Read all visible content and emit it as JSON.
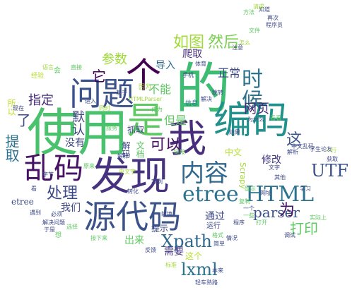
{
  "words": [
    {
      "id": "de",
      "text": "的",
      "color": "#3fbc73"
    },
    {
      "id": "shiyong",
      "text": "使用",
      "color": "#4ac16d"
    },
    {
      "id": "wo",
      "text": "我",
      "color": "#472d7b"
    },
    {
      "id": "faxian",
      "text": "发现",
      "color": "#46327e"
    },
    {
      "id": "bianma",
      "text": "编码",
      "color": "#21918c"
    },
    {
      "id": "wenti",
      "text": "问题",
      "color": "#3b528b"
    },
    {
      "id": "shi",
      "text": "是",
      "color": "#5ec962"
    },
    {
      "id": "ge",
      "text": "个",
      "color": "#440154"
    },
    {
      "id": "yuandaima",
      "text": "源代码",
      "color": "#3b528b"
    },
    {
      "id": "luanma",
      "text": "乱码",
      "color": "#471164"
    },
    {
      "id": "neirong",
      "text": "内容",
      "color": "#31688e"
    },
    {
      "id": "etree_html",
      "text": "etree HTML",
      "color": "#2c728e"
    },
    {
      "id": "shihou",
      "text": "时候",
      "color": "#2c728e"
    },
    {
      "id": "xpath",
      "text": "Xpath",
      "color": "#31688e"
    },
    {
      "id": "lxml",
      "text": "lxml",
      "color": "#2c728e"
    },
    {
      "id": "parser",
      "text": "parser",
      "color": "#3b528b"
    },
    {
      "id": "utf",
      "text": "UTF",
      "color": "#3b528b"
    },
    {
      "id": "keyi",
      "text": "可以",
      "color": "#471164"
    },
    {
      "id": "ruhetu",
      "text": "如图",
      "color": "#a0da39"
    },
    {
      "id": "ranhou",
      "text": "然后",
      "color": "#7ad151"
    },
    {
      "id": "zhengchang",
      "text": "正常",
      "color": "#3e4989"
    },
    {
      "id": "canshu",
      "text": "参数",
      "color": "#a0da39"
    },
    {
      "id": "chuli",
      "text": "处理",
      "color": "#3e4989"
    },
    {
      "id": "tiqu",
      "text": "提取",
      "color": "#2c728e"
    },
    {
      "id": "le",
      "text": "了",
      "color": "#3e4989"
    },
    {
      "id": "zhiding",
      "text": "指定",
      "color": "#472d7b"
    },
    {
      "id": "moren",
      "text": "默认",
      "color": "#414487"
    },
    {
      "id": "dayin",
      "text": "打印",
      "color": "#5ec962"
    },
    {
      "id": "wei",
      "text": "为",
      "color": "#471164"
    },
    {
      "id": "zhe",
      "text": "这",
      "color": "#3b528b"
    },
    {
      "id": "xiugai",
      "text": "修改",
      "color": "#443983"
    },
    {
      "id": "wangye",
      "text": "网页",
      "color": "#482878"
    },
    {
      "id": "buneng",
      "text": "不能",
      "color": "#5ec962"
    },
    {
      "id": "danshi",
      "text": "但是",
      "color": "#5ec962"
    },
    {
      "id": "tongguo",
      "text": "通过",
      "color": "#3e4989"
    },
    {
      "id": "women",
      "text": "我们",
      "color": "#3e4989"
    },
    {
      "id": "xuyao",
      "text": "需要",
      "color": "#443983"
    },
    {
      "id": "chulai",
      "text": "出来",
      "color": "#5ec962"
    },
    {
      "id": "zhege",
      "text": "这个",
      "color": "#b5de2b"
    },
    {
      "id": "pachu",
      "text": "爬取",
      "color": "#472d7b"
    },
    {
      "id": "daoru",
      "text": "导入",
      "color": "#31688e"
    },
    {
      "id": "ta",
      "text": "它",
      "color": "#440154"
    },
    {
      "id": "zhongwen",
      "text": "中文",
      "color": "#b5de2b"
    },
    {
      "id": "meiyou",
      "text": "没有",
      "color": "#3e4989"
    },
    {
      "id": "suoyi",
      "text": "所以",
      "color": "#bddf26"
    },
    {
      "id": "etree",
      "text": "etree",
      "color": "#3e4989"
    },
    {
      "id": "wendang",
      "text": "文档",
      "color": "#5ec962"
    },
    {
      "id": "jiema",
      "text": "解码",
      "color": "#3e4989"
    },
    {
      "id": "yunxing",
      "text": "运行",
      "color": "#3e4989"
    },
    {
      "id": "tishi",
      "text": "提示",
      "color": "#3e4989"
    },
    {
      "id": "zhuaqu",
      "text": "抓取",
      "color": "#3e4989"
    },
    {
      "id": "scrapy",
      "text": "Scrapy",
      "color": "#a0da39"
    },
    {
      "id": "shouji",
      "text": "手机",
      "color": "#3e4989"
    },
    {
      "id": "xinxi",
      "text": "信息",
      "color": "#2c728e"
    },
    {
      "id": "jiejue",
      "text": "解决",
      "color": "#3e4989"
    },
    {
      "id": "htmlparser",
      "text": "HTMLParser",
      "color": "#a0da39"
    },
    {
      "id": "zuowei",
      "text": "作为",
      "color": "#5ec962"
    },
    {
      "id": "tiyu",
      "text": "体育",
      "color": "#3e4989"
    },
    {
      "id": "xueshengyou",
      "text": "学生论友",
      "color": "#3e4989"
    },
    {
      "id": "jingyan",
      "text": "经验",
      "color": "#b5de2b"
    },
    {
      "id": "zhijie",
      "text": "直接",
      "color": "#5ec962"
    },
    {
      "id": "shijishang",
      "text": "实际上",
      "color": "#5ec962"
    },
    {
      "id": "tiaoshi",
      "text": "调试",
      "color": "#3e4989"
    },
    {
      "id": "chengxu",
      "text": "程序",
      "color": "#3e4989"
    },
    {
      "id": "yinwei",
      "text": "因为",
      "color": "#a0da39"
    },
    {
      "id": "tiaozhuan",
      "text": "跳转",
      "color": "#3e4989"
    },
    {
      "id": "jieguo",
      "text": "结果",
      "color": "#3e4989"
    },
    {
      "id": "xianshi",
      "text": "显示",
      "color": "#5ec962"
    },
    {
      "id": "fanyi",
      "text": "反馈",
      "color": "#3e4989"
    },
    {
      "id": "wangzhi",
      "text": "网址",
      "color": "#3e4989"
    },
    {
      "id": "huoqu",
      "text": "获取",
      "color": "#3e4989"
    },
    {
      "id": "jiexi",
      "text": "解析",
      "color": "#3e4989"
    },
    {
      "id": "yixie",
      "text": "一些",
      "color": "#5ec962"
    },
    {
      "id": "xianzai",
      "text": "现在",
      "color": "#3e4989"
    },
    {
      "id": "yuyan",
      "text": "语言",
      "color": "#a0da39"
    },
    {
      "id": "hui",
      "text": "会",
      "color": "#5ec962"
    },
    {
      "id": "bixu",
      "text": "必须",
      "color": "#3e4989"
    },
    {
      "id": "xuanze",
      "text": "选择",
      "color": "#5ec962"
    },
    {
      "id": "zijie",
      "text": "字节",
      "color": "#3e4989"
    },
    {
      "id": "qita",
      "text": "其他",
      "color": "#3e4989"
    },
    {
      "id": "kankan",
      "text": "看看",
      "color": "#5ec962"
    },
    {
      "id": "zenme",
      "text": "怎么",
      "color": "#a0da39"
    },
    {
      "id": "weishenme",
      "text": "为什么",
      "color": "#3e4989"
    },
    {
      "id": "zhongwenluan",
      "text": "中文乱码",
      "color": "#3e4989"
    },
    {
      "id": "fangfa",
      "text": "方法",
      "color": "#5ec962"
    },
    {
      "id": "zhidao",
      "text": "知道",
      "color": "#3e4989"
    },
    {
      "id": "zhuyi",
      "text": "注意",
      "color": "#3e4989"
    },
    {
      "id": "yuanlai",
      "text": "原来",
      "color": "#5ec962"
    },
    {
      "id": "zhongwenzi",
      "text": "中文字",
      "color": "#a0da39"
    },
    {
      "id": "jiejuewenti",
      "text": "解决问题",
      "color": "#3e4989"
    },
    {
      "id": "xiang",
      "text": "想",
      "color": "#5ec962"
    },
    {
      "id": "yudao",
      "text": "遇到",
      "color": "#3e4989"
    },
    {
      "id": "kan",
      "text": "看",
      "color": "#3e4989"
    },
    {
      "id": "jieshoudao",
      "text": "接下来",
      "color": "#5ec962"
    },
    {
      "id": "yu",
      "text": "于是",
      "color": "#3e4989"
    },
    {
      "id": "qingqiu",
      "text": "请求",
      "color": "#a0da39"
    },
    {
      "id": "zaici",
      "text": "再次",
      "color": "#3e4989"
    },
    {
      "id": "chengxuyuan",
      "text": "程序员",
      "color": "#3e4989"
    },
    {
      "id": "wenjian",
      "text": "文件",
      "color": "#5ec962"
    },
    {
      "id": "jiyu",
      "text": "基于",
      "color": "#3e4989"
    },
    {
      "id": "zhuzhi",
      "text": "转化",
      "color": "#3e4989"
    },
    {
      "id": "lianjie",
      "text": "链接",
      "color": "#5ec962"
    },
    {
      "id": "tongshi",
      "text": "同时",
      "color": "#a0da39"
    },
    {
      "id": "jinru",
      "text": "进入",
      "color": "#3e4989"
    },
    {
      "id": "jianban",
      "text": "简单",
      "color": "#3e4989"
    },
    {
      "id": "geshi",
      "text": "格式",
      "color": "#5ec962"
    },
    {
      "id": "qingkuang",
      "text": "情况",
      "color": "#3e4989"
    },
    {
      "id": "qinggan",
      "text": "轻车熟路",
      "color": "#3e4989"
    },
    {
      "id": "biaozhun",
      "text": "标准",
      "color": "#a0da39"
    },
    {
      "id": "zhuanhuan",
      "text": "转换",
      "color": "#3e4989"
    },
    {
      "id": "benlai",
      "text": "本来",
      "color": "#3e4989"
    },
    {
      "id": "dakai",
      "text": "打开",
      "color": "#5ec962"
    },
    {
      "id": "yige",
      "text": "一个",
      "color": "#3e4989"
    },
    {
      "id": "xuexi",
      "text": "学习",
      "color": "#3e4989"
    },
    {
      "id": "fuzhi",
      "text": "复制",
      "color": "#5ec962"
    },
    {
      "id": "yuxing",
      "text": "一行",
      "color": "#a0da39"
    },
    {
      "id": "wenzi",
      "text": "文字",
      "color": "#3e4989"
    },
    {
      "id": "jieshi",
      "text": "解释",
      "color": "#3e4989"
    },
    {
      "id": "fuwu",
      "text": "服务",
      "color": "#5ec962"
    },
    {
      "id": "shili",
      "text": "实例",
      "color": "#3e4989"
    }
  ]
}
